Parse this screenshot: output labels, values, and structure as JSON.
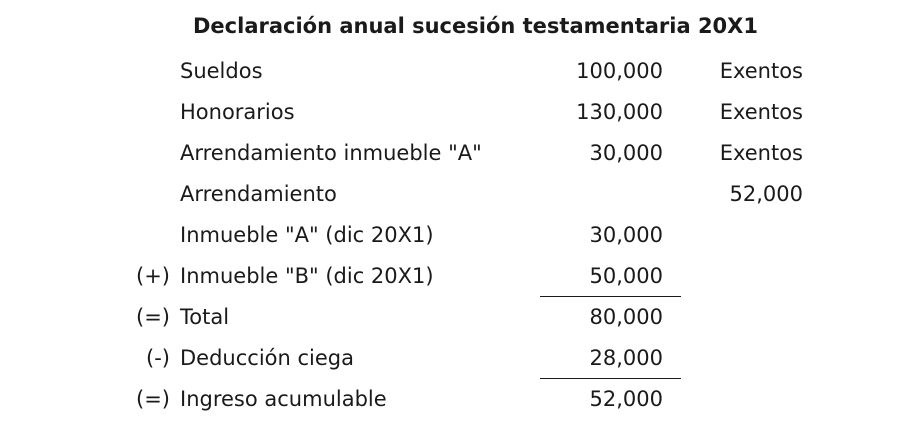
{
  "document": {
    "title": "Declaración anual sucesión testamentaria 20X1"
  },
  "rows": [
    {
      "op": "",
      "label": "Sueldos",
      "amount": "100,000",
      "other": "Exentos"
    },
    {
      "op": "",
      "label": "Honorarios",
      "amount": "130,000",
      "other": "Exentos"
    },
    {
      "op": "",
      "label": "Arrendamiento inmueble \"A\"",
      "amount": "30,000",
      "other": "Exentos"
    },
    {
      "op": "",
      "label": "Arrendamiento",
      "amount": "",
      "other": "52,000"
    },
    {
      "op": "",
      "label": "Inmueble \"A\" (dic 20X1)",
      "amount": "30,000",
      "other": ""
    },
    {
      "op": "(+)",
      "label": "Inmueble \"B\" (dic 20X1)",
      "amount": "50,000",
      "other": ""
    },
    {
      "op": "(=)",
      "label": "Total",
      "amount": "80,000",
      "other": ""
    },
    {
      "op": "(-)",
      "label": "Deducción ciega",
      "amount": "28,000",
      "other": ""
    },
    {
      "op": "(=)",
      "label": "Ingreso acumulable",
      "amount": "52,000",
      "other": ""
    }
  ]
}
